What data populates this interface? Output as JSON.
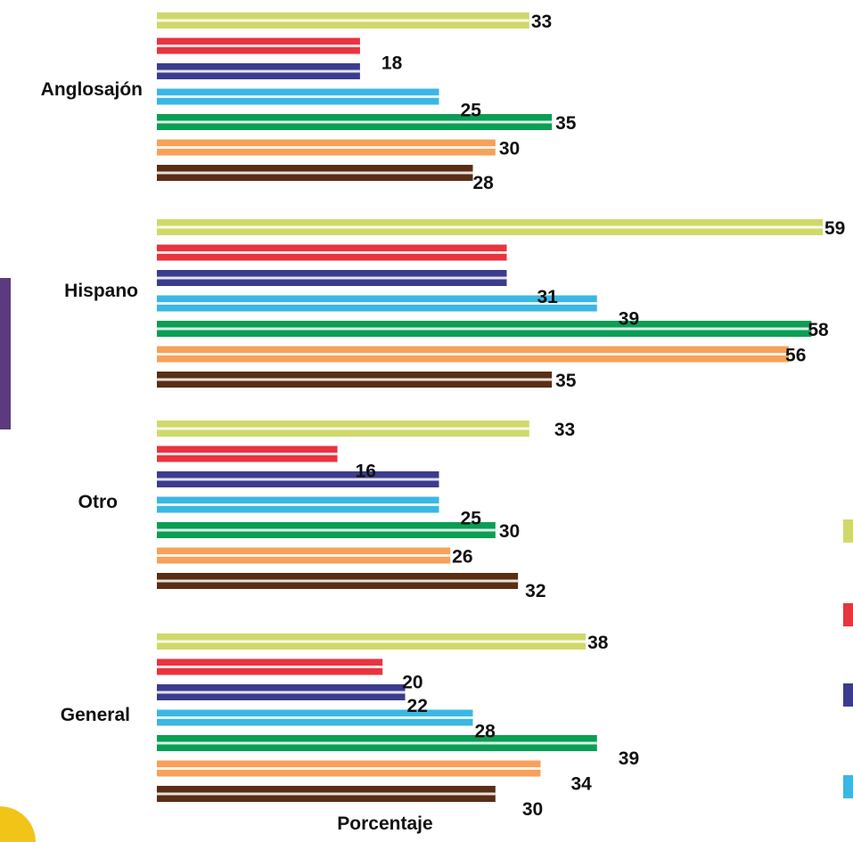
{
  "chart_data": {
    "type": "bar",
    "orientation": "horizontal",
    "categories": [
      "Anglosajón",
      "Hispano",
      "Otro",
      "General"
    ],
    "series": [
      {
        "color": "#cfd96a",
        "values": [
          33,
          59,
          33,
          38
        ]
      },
      {
        "color": "#e8343f",
        "values": [
          18,
          31,
          16,
          20
        ]
      },
      {
        "color": "#3c3c8e",
        "values": [
          18,
          31,
          25,
          22
        ]
      },
      {
        "color": "#3bb7e3",
        "values": [
          25,
          39,
          25,
          28
        ]
      },
      {
        "color": "#0b9e55",
        "values": [
          35,
          58,
          30,
          39
        ]
      },
      {
        "color": "#f7a15a",
        "values": [
          30,
          56,
          26,
          34
        ]
      },
      {
        "color": "#5a2e14",
        "values": [
          28,
          35,
          32,
          30
        ]
      }
    ],
    "data_labels": [
      [
        "33",
        "18",
        "",
        "25",
        "35",
        "30",
        "28"
      ],
      [
        "59",
        "",
        "31",
        "39",
        "58",
        "56",
        "35"
      ],
      [
        "33",
        "16",
        "",
        "25",
        "30",
        "26",
        "32"
      ],
      [
        "38",
        "20",
        "22",
        "28",
        "39",
        "34",
        "30"
      ]
    ],
    "xlabel": "Porcentaje",
    "xlim": [
      0,
      60
    ]
  }
}
